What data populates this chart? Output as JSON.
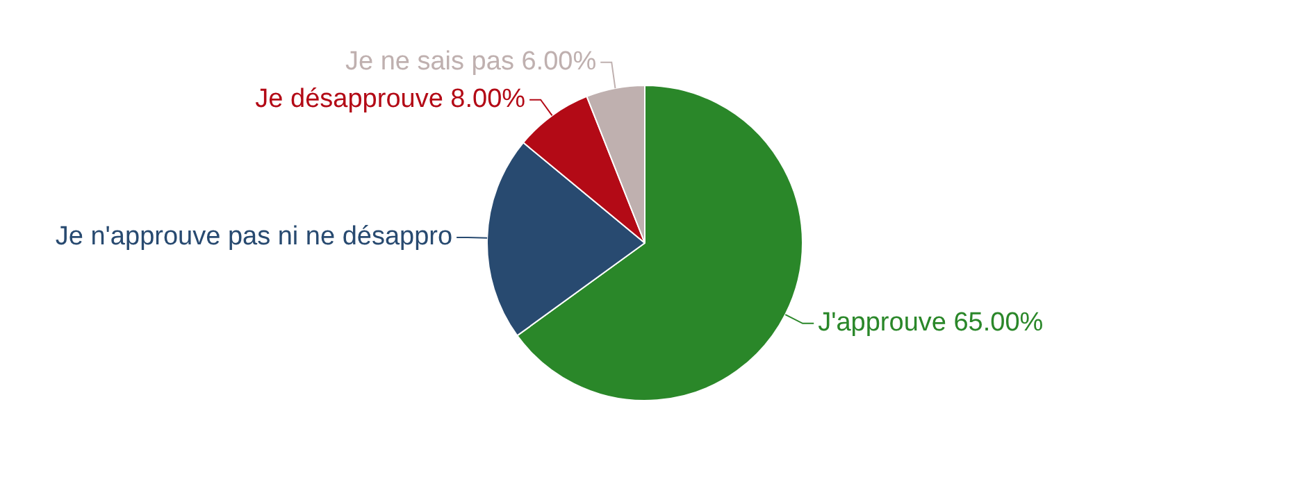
{
  "chart_data": {
    "type": "pie",
    "categories": [
      "J'approuve",
      "Je n'approuve pas ni ne désappro",
      "Je désapprouve",
      "Je ne sais pas"
    ],
    "values": [
      65,
      21,
      8,
      6
    ],
    "colors": [
      "#2a8729",
      "#284a70",
      "#b30a16",
      "#bfb0af"
    ],
    "value_labels": [
      "65.00%",
      null,
      "8.00%",
      "6.00%"
    ]
  }
}
